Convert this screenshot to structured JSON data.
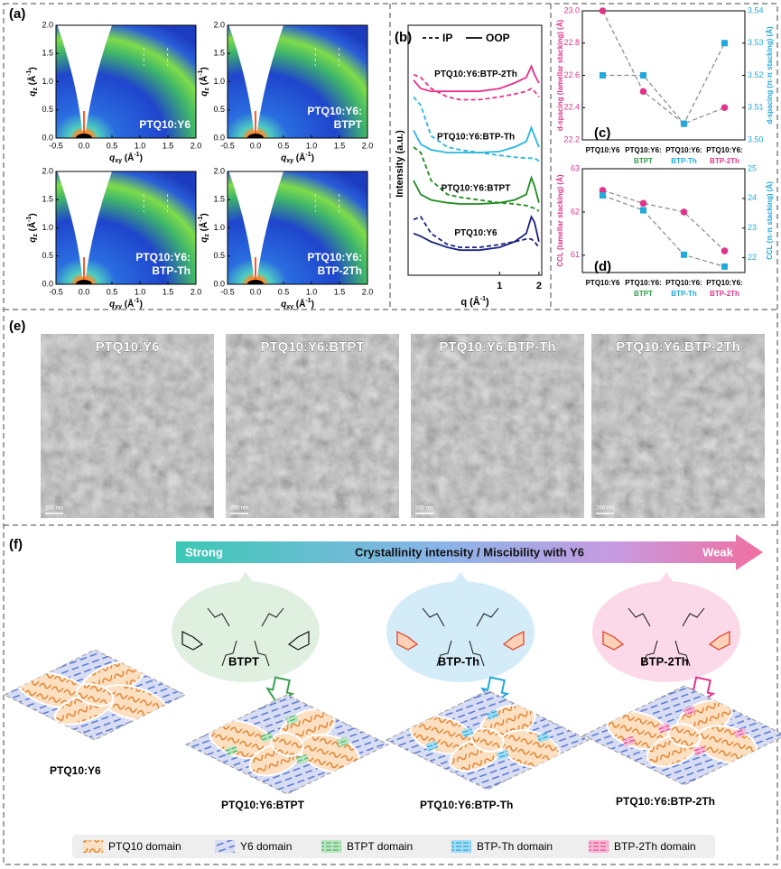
{
  "panel_labels": [
    "(a)",
    "(b)",
    "(c)",
    "(d)",
    "(e)",
    "(f)"
  ],
  "giwaxs": {
    "images": [
      [
        "PTQ10:Y6"
      ],
      [
        "PTQ10:Y6:",
        "BTPT"
      ],
      [
        "PTQ10:Y6:",
        "BTP-Th"
      ],
      [
        "PTQ10:Y6:",
        "BTP-2Th"
      ]
    ],
    "xlabel": [
      "q",
      "xy",
      " (Å",
      "-1",
      ")"
    ],
    "ylabel": [
      "q",
      "z",
      " (Å",
      "-1",
      ")"
    ],
    "xlim": [
      -0.5,
      2.0
    ],
    "ylim": [
      0,
      2.0
    ],
    "xticks": [
      -0.5,
      {
        "value": 0,
        "label": "0.0"
      },
      0.5,
      {
        "value": 1,
        "label": "1.0"
      },
      1.5,
      {
        "value": 2,
        "label": "2.0"
      }
    ],
    "yticks": [
      {
        "value": 0,
        "label": "0.0"
      },
      0.5,
      {
        "value": 1,
        "label": "1.0"
      },
      1.5,
      {
        "value": 2,
        "label": "2.0"
      }
    ]
  },
  "chart_data": [
    {
      "type": "line",
      "xscale": "log",
      "legend": [
        "IP",
        "OOP"
      ],
      "xlabel": [
        "q",
        " (Å",
        "-1",
        ")"
      ],
      "ylabel": "Intensity (a.u.)",
      "x": [
        0.22,
        0.25,
        0.3,
        0.4,
        0.5,
        0.7,
        1.0,
        1.3,
        1.6,
        1.75,
        1.85,
        2.0
      ],
      "xlim": [
        0.2,
        2.1
      ],
      "xticks": [
        1,
        2
      ],
      "ylim": [
        0,
        4
      ],
      "series": [
        {
          "name": "PTQ10:Y6",
          "color": "#1a237e",
          "ip": [
            1.0,
            1.05,
            0.75,
            0.55,
            0.5,
            0.5,
            0.55,
            0.6,
            0.65,
            0.65,
            0.6,
            0.5
          ],
          "oop": [
            0.75,
            0.7,
            0.6,
            0.5,
            0.45,
            0.45,
            0.5,
            0.6,
            0.75,
            1.05,
            0.95,
            0.6
          ]
        },
        {
          "name": "PTQ10:Y6:BTPT",
          "color": "#1e8c1e",
          "ip": [
            2.3,
            2.2,
            1.7,
            1.45,
            1.4,
            1.35,
            1.3,
            1.28,
            1.25,
            1.22,
            1.2,
            1.15
          ],
          "oop": [
            1.7,
            1.45,
            1.35,
            1.3,
            1.28,
            1.28,
            1.3,
            1.35,
            1.45,
            1.75,
            1.6,
            1.3
          ]
        },
        {
          "name": "PTQ10:Y6:BTP-Th",
          "color": "#29b6e0",
          "ip": [
            3.2,
            3.05,
            2.5,
            2.3,
            2.25,
            2.2,
            2.15,
            2.12,
            2.1,
            2.1,
            2.1,
            2.05
          ],
          "oop": [
            2.6,
            2.35,
            2.25,
            2.2,
            2.2,
            2.2,
            2.22,
            2.3,
            2.4,
            2.65,
            2.5,
            2.3
          ]
        },
        {
          "name": "PTQ10:Y6:BTP-2Th",
          "color": "#e8338a",
          "ip": [
            3.6,
            3.55,
            3.35,
            3.2,
            3.15,
            3.15,
            3.2,
            3.25,
            3.3,
            3.35,
            3.3,
            3.2
          ],
          "oop": [
            3.5,
            3.35,
            3.3,
            3.3,
            3.3,
            3.3,
            3.35,
            3.45,
            3.55,
            3.75,
            3.6,
            3.45
          ]
        }
      ]
    },
    {
      "type": "line",
      "categories": [
        [
          "PTQ10:Y6"
        ],
        [
          "PTQ10:Y6:",
          "BTPT"
        ],
        [
          "PTQ10:Y6:",
          "BTP-Th"
        ],
        [
          "PTQ10:Y6:",
          "BTP-2Th"
        ]
      ],
      "label_colors": [
        "#000000",
        "#2e9e4a",
        "#22aadd",
        "#e0338a"
      ],
      "ylabel": "d-spacing (lamellar stacking) (Å)",
      "y2label": "d-spacing (π-π stacking) (Å)",
      "ylim": [
        22.2,
        23.0
      ],
      "yticks": [
        22.2,
        22.4,
        22.6,
        22.8,
        {
          "value": 23,
          "label": "23.0"
        }
      ],
      "y2lim": [
        3.5,
        3.54
      ],
      "y2ticks": [
        {
          "value": 3.5,
          "label": "3.50"
        },
        3.51,
        3.52,
        3.53,
        3.54
      ],
      "line_color": "#888888",
      "series": [
        {
          "color": "#e0338a",
          "marker": "circle",
          "values": [
            23.0,
            22.5,
            22.3,
            22.4
          ]
        },
        {
          "color": "#22aadd",
          "marker": "square",
          "axis": "y2",
          "values": [
            3.52,
            3.52,
            3.505,
            3.53
          ]
        }
      ]
    },
    {
      "type": "line",
      "categories": [
        [
          "PTQ10:Y6"
        ],
        [
          "PTQ10:Y6:",
          "BTPT"
        ],
        [
          "PTQ10:Y6:",
          "BTP-Th"
        ],
        [
          "PTQ10:Y6:",
          "BTP-2Th"
        ]
      ],
      "label_colors": [
        "#000000",
        "#2e9e4a",
        "#22aadd",
        "#e0338a"
      ],
      "ylabel": "CCL (lamellar stacking) (Å)",
      "y2label": "CCL (π-π stacking) (Å)",
      "ylim": [
        60.6,
        63
      ],
      "yticks": [
        61,
        62,
        63
      ],
      "y2lim": [
        21.5,
        25
      ],
      "y2ticks": [
        22,
        23,
        24,
        25
      ],
      "line_color": "#888888",
      "series": [
        {
          "color": "#e0338a",
          "marker": "circle",
          "values": [
            62.5,
            62.2,
            62.0,
            61.1
          ]
        },
        {
          "color": "#22aadd",
          "marker": "square",
          "axis": "y2",
          "values": [
            24.1,
            23.6,
            22.1,
            21.7
          ]
        }
      ]
    }
  ],
  "tem": {
    "images": [
      "PTQ10:Y6",
      "PTQ10:Y6:BTPT",
      "PTQ10:Y6:BTP-Th",
      "PTQ10:Y6:BTP-2Th"
    ],
    "scale_bar": "200 nm"
  },
  "schematic": {
    "arrow": {
      "start": "Strong",
      "middle": "Crystallinity intensity / Miscibility with Y6",
      "end": "Weak"
    },
    "molecules": [
      {
        "name": "BTPT",
        "color": "#dff0e0",
        "accent": "#3aa050"
      },
      {
        "name": "BTP-Th",
        "color": "#d3ecf8",
        "accent": "#22a8dc"
      },
      {
        "name": "BTP-2Th",
        "color": "#fbd9e8",
        "accent": "#e0338a"
      }
    ],
    "blends": [
      "PTQ10:Y6",
      "PTQ10:Y6:BTPT",
      "PTQ10:Y6:BTP-Th",
      "PTQ10:Y6:BTP-2Th"
    ],
    "legend": [
      "PTQ10 domain",
      "Y6 domain",
      "BTPT domain",
      "BTP-Th domain",
      "BTP-2Th domain"
    ]
  }
}
